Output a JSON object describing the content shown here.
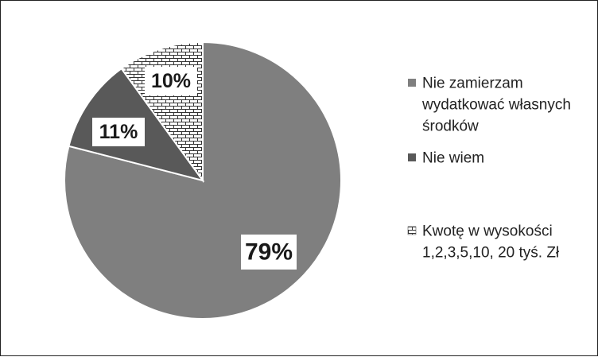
{
  "chart_data": {
    "type": "pie",
    "start_angle": "12 o'clock",
    "direction": "clockwise",
    "series": [
      {
        "name": "Nie zamierzam wydatkować własnych środków",
        "legend_lines": [
          "Nie zamierzam",
          "wydatkować własnych",
          "środków"
        ],
        "value": 79,
        "label": "79%",
        "fill": "#7f7f7f",
        "pattern": "solid"
      },
      {
        "name": "Nie wiem",
        "legend_lines": [
          "Nie wiem"
        ],
        "value": 11,
        "label": "11%",
        "fill": "#595959",
        "pattern": "solid"
      },
      {
        "name": "Kwotę w wysokości 1,2,3,5,10, 20 tyś. Zł",
        "legend_lines": [
          "Kwotę w wysokości",
          "1,2,3,5,10, 20 tyś. Zł"
        ],
        "value": 10,
        "label": "10%",
        "fill": "#ffffff",
        "pattern": "brick"
      }
    ],
    "legend_position": "right"
  }
}
